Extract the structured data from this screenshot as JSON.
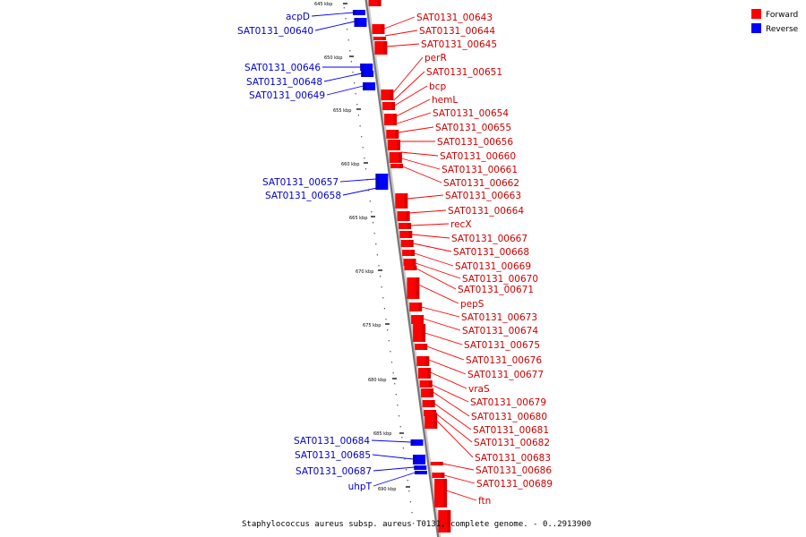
{
  "legend": {
    "forward": {
      "label": "Forward",
      "color": "#ff0000"
    },
    "reverse": {
      "label": "Reverse",
      "color": "#0000ff"
    }
  },
  "caption": "Staphylococcus aureus subsp. aureus T0131, complete genome. - 0..2913900",
  "ticks": [
    "645 kbp",
    "650 kbp",
    "655 kbp",
    "660 kbp",
    "665 kbp",
    "670 kbp",
    "675 kbp",
    "680 kbp",
    "685 kbp",
    "690 kbp"
  ],
  "genes_forward": [
    "SAT0131_00643",
    "SAT0131_00644",
    "SAT0131_00645",
    "perR",
    "SAT0131_00651",
    "bcp",
    "hemL",
    "SAT0131_00654",
    "SAT0131_00655",
    "SAT0131_00656",
    "SAT0131_00660",
    "SAT0131_00661",
    "SAT0131_00662",
    "SAT0131_00663",
    "SAT0131_00664",
    "recX",
    "SAT0131_00667",
    "SAT0131_00668",
    "SAT0131_00669",
    "SAT0131_00670",
    "SAT0131_00671",
    "pepS",
    "SAT0131_00673",
    "SAT0131_00674",
    "SAT0131_00675",
    "SAT0131_00676",
    "SAT0131_00677",
    "vraS",
    "SAT0131_00679",
    "SAT0131_00680",
    "SAT0131_00681",
    "SAT0131_00682",
    "SAT0131_00683",
    "SAT0131_00686",
    "SAT0131_00689",
    "ftn"
  ],
  "genes_reverse": [
    "acpD",
    "SAT0131_00640",
    "SAT0131_00646",
    "SAT0131_00648",
    "SAT0131_00649",
    "SAT0131_00657",
    "SAT0131_00658",
    "SAT0131_00684",
    "SAT0131_00685",
    "SAT0131_00687",
    "uhpT"
  ]
}
